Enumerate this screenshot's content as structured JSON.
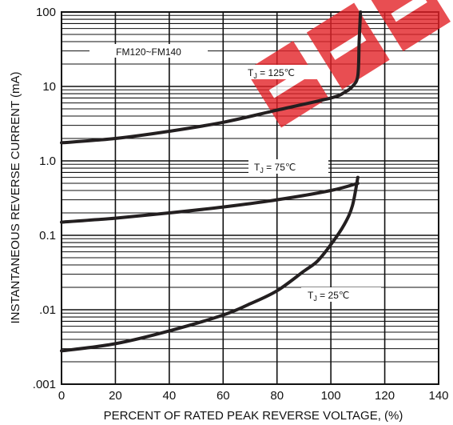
{
  "chart_data": {
    "type": "line",
    "title": "",
    "xlabel": "PERCENT OF RATED PEAK REVERSE VOLTAGE, (%)",
    "ylabel": "INSTANTANEOUS REVERSE CURRENT (mA)",
    "x_scale": "linear",
    "y_scale": "log",
    "xlim": [
      0,
      140
    ],
    "ylim": [
      0.001,
      100
    ],
    "x_ticks": [
      0,
      20,
      40,
      60,
      80,
      100,
      120,
      140
    ],
    "x_tick_labels": [
      "0",
      "20",
      "40",
      "60",
      "80",
      "100",
      "120",
      "140"
    ],
    "y_ticks": [
      0.001,
      0.01,
      0.1,
      1,
      10,
      100
    ],
    "y_tick_labels": [
      ".001",
      ".01",
      "0.1",
      "1.0",
      "10",
      "100"
    ],
    "grid": true,
    "annotation": "FM120~FM140",
    "series": [
      {
        "name": "TJ = 125℃",
        "label_parts": [
          "T",
          "J",
          " = 125℃"
        ],
        "x": [
          0,
          20,
          40,
          60,
          80,
          100,
          105,
          108,
          110,
          110.5,
          111
        ],
        "y": [
          1.75,
          2.0,
          2.5,
          3.3,
          4.8,
          7.0,
          8.3,
          10,
          14,
          40,
          100
        ]
      },
      {
        "name": "TJ = 75℃",
        "label_parts": [
          "T",
          "J",
          " = 75℃"
        ],
        "x": [
          0,
          20,
          40,
          60,
          80,
          100,
          110
        ],
        "y": [
          0.15,
          0.17,
          0.2,
          0.24,
          0.3,
          0.4,
          0.5
        ]
      },
      {
        "name": "TJ = 25℃",
        "label_parts": [
          "T",
          "J",
          " = 25℃"
        ],
        "x": [
          0,
          20,
          40,
          60,
          70,
          80,
          90,
          95,
          100,
          105,
          108,
          110
        ],
        "y": [
          0.0028,
          0.0035,
          0.0052,
          0.0085,
          0.012,
          0.018,
          0.033,
          0.045,
          0.075,
          0.14,
          0.25,
          0.6
        ]
      }
    ],
    "colors": {
      "curve": "#231f20",
      "grid": "#111111",
      "watermark": "#e32228"
    }
  }
}
